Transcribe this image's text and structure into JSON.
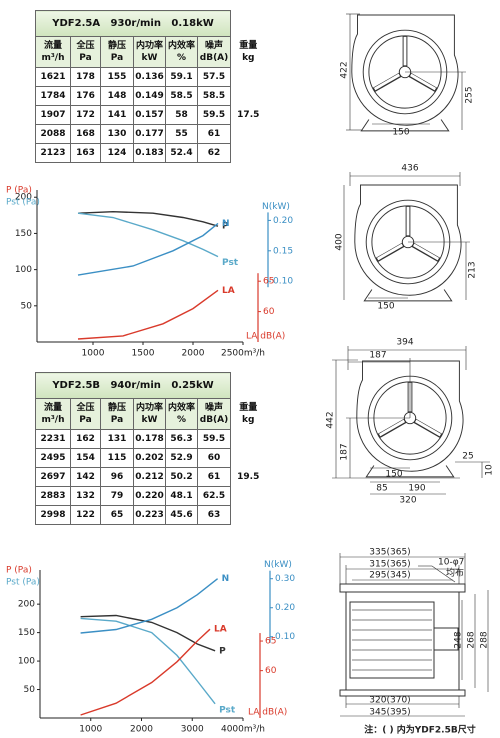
{
  "tables": [
    {
      "title": "YDF2.5A   930r/min   0.18kW",
      "headers": [
        [
          "流量",
          "m³/h"
        ],
        [
          "全压",
          "Pa"
        ],
        [
          "静压",
          "Pa"
        ],
        [
          "内功率",
          "kW"
        ],
        [
          "内效率",
          "%"
        ],
        [
          "噪声",
          "dB(A)"
        ],
        [
          "重量",
          "kg"
        ]
      ],
      "rows": [
        [
          "1621",
          "178",
          "155",
          "0.136",
          "59.1",
          "57.5"
        ],
        [
          "1784",
          "176",
          "148",
          "0.149",
          "58.5",
          "58.5"
        ],
        [
          "1907",
          "172",
          "141",
          "0.157",
          "58",
          "59.5"
        ],
        [
          "2088",
          "168",
          "130",
          "0.177",
          "55",
          "61"
        ],
        [
          "2123",
          "163",
          "124",
          "0.183",
          "52.4",
          "62"
        ]
      ],
      "weight": "17.5"
    },
    {
      "title": "YDF2.5B   940r/min   0.25kW",
      "headers": [
        [
          "流量",
          "m³/h"
        ],
        [
          "全压",
          "Pa"
        ],
        [
          "静压",
          "Pa"
        ],
        [
          "内功率",
          "kW"
        ],
        [
          "内效率",
          "%"
        ],
        [
          "噪声",
          "dB(A)"
        ],
        [
          "重量",
          "kg"
        ]
      ],
      "rows": [
        [
          "2231",
          "162",
          "131",
          "0.178",
          "56.3",
          "59.5"
        ],
        [
          "2495",
          "154",
          "115",
          "0.202",
          "52.9",
          "60"
        ],
        [
          "2697",
          "142",
          "96",
          "0.212",
          "50.2",
          "61"
        ],
        [
          "2883",
          "132",
          "79",
          "0.220",
          "48.1",
          "62.5"
        ],
        [
          "2998",
          "122",
          "65",
          "0.223",
          "45.6",
          "63"
        ]
      ],
      "weight": "19.5"
    }
  ],
  "chart_data": [
    {
      "type": "line",
      "y_labels": [
        "P (Pa)",
        "Pst (Pa)"
      ],
      "y2label": "N(kW)",
      "y3label": "LA dB(A)",
      "xlim": [
        440,
        2500
      ],
      "xticks": [
        1000,
        1500,
        2000,
        {
          "value": 2500,
          "label": "2500m³/h"
        }
      ],
      "ylim": [
        0,
        210
      ],
      "yticks": [
        50,
        100,
        150,
        200
      ],
      "y2lim": [
        0,
        0.25
      ],
      "y2ticks": [
        {
          "value": 0.1,
          "label": "0.10"
        },
        0.15,
        {
          "value": 0.2,
          "label": "0.20"
        }
      ],
      "y3lim": [
        55,
        80
      ],
      "y3ticks": [
        60,
        65
      ],
      "series": [
        {
          "name": "P",
          "color": "#333333",
          "axis": "y",
          "x": [
            850,
            1200,
            1600,
            1900,
            2100,
            2250
          ],
          "values": [
            178,
            180,
            178,
            172,
            166,
            160
          ]
        },
        {
          "name": "Pst",
          "color": "#5aa9c9",
          "axis": "y",
          "x": [
            850,
            1200,
            1600,
            1900,
            2100,
            2250
          ],
          "values": [
            178,
            172,
            155,
            140,
            128,
            118
          ]
        },
        {
          "name": "N",
          "color": "#3b8fc4",
          "axis": "y2",
          "x": [
            850,
            1400,
            1800,
            2100,
            2250
          ],
          "values": [
            0.11,
            0.125,
            0.15,
            0.175,
            0.195
          ]
        },
        {
          "name": "LA",
          "color": "#d93a2b",
          "axis": "y3",
          "x": [
            850,
            1300,
            1700,
            2000,
            2250
          ],
          "values": [
            55.5,
            56,
            58,
            60.5,
            63.5
          ]
        }
      ]
    },
    {
      "type": "line",
      "y_labels": [
        "P (Pa)",
        "Pst (Pa)"
      ],
      "y2label": "N(kW)",
      "y3label": "LA dB(A)",
      "xlim": [
        0,
        4000
      ],
      "xticks": [
        1000,
        2000,
        3000,
        {
          "value": 4000,
          "label": "4000m³/h"
        }
      ],
      "ylim": [
        0,
        260
      ],
      "yticks": [
        50,
        100,
        150,
        200
      ],
      "y2lim": [
        -0.18,
        0.33
      ],
      "y2ticks": [
        {
          "value": 0.1,
          "label": "0.10"
        },
        {
          "value": 0.2,
          "label": "0.20"
        },
        {
          "value": 0.3,
          "label": "0.30"
        }
      ],
      "y3lim": [
        52,
        77
      ],
      "y3ticks": [
        60,
        65
      ],
      "series": [
        {
          "name": "P",
          "color": "#333333",
          "axis": "y",
          "x": [
            800,
            1500,
            2200,
            2700,
            3100,
            3450
          ],
          "values": [
            178,
            180,
            168,
            150,
            130,
            118
          ]
        },
        {
          "name": "Pst",
          "color": "#5aa9c9",
          "axis": "y",
          "x": [
            800,
            1500,
            2200,
            2700,
            3100,
            3450
          ],
          "values": [
            175,
            170,
            150,
            110,
            65,
            25
          ]
        },
        {
          "name": "N",
          "color": "#3b8fc4",
          "axis": "y2",
          "x": [
            800,
            1500,
            2200,
            2700,
            3100,
            3500
          ],
          "values": [
            0.113,
            0.125,
            0.16,
            0.2,
            0.245,
            0.3
          ]
        },
        {
          "name": "LA",
          "color": "#d93a2b",
          "axis": "y3",
          "x": [
            800,
            1500,
            2200,
            2700,
            3100,
            3350
          ],
          "values": [
            52.5,
            54.5,
            58,
            61.5,
            65,
            67
          ]
        }
      ]
    }
  ],
  "drawings": [
    {
      "dims": [
        "422",
        "255",
        "150"
      ]
    },
    {
      "dims": [
        "436",
        "400",
        "213",
        "150"
      ]
    },
    {
      "dims": [
        "394",
        "187",
        "442",
        "187",
        "25",
        "10",
        "85",
        "150",
        "190",
        "320"
      ]
    },
    {
      "dims": [
        "335(365)",
        "315(365)",
        "295(345)",
        "10-φ7",
        "均布",
        "248",
        "268",
        "288",
        "320(370)",
        "345(395)"
      ]
    }
  ],
  "note": "注：(  ) 内为YDF2.5B尺寸"
}
